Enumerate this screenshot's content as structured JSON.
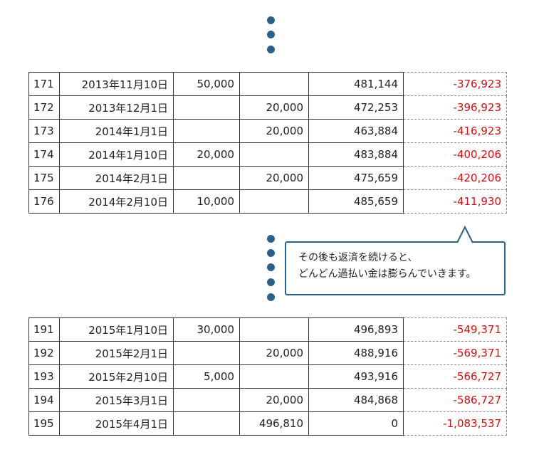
{
  "top_rows": [
    {
      "no": "171",
      "date": "2013年11月10日",
      "deposit": "50,000",
      "payment": "",
      "balance": "481,144",
      "diff": "-376,923"
    },
    {
      "no": "172",
      "date": "2013年12月1日",
      "deposit": "",
      "payment": "20,000",
      "balance": "472,253",
      "diff": "-396,923"
    },
    {
      "no": "173",
      "date": "2014年1月1日",
      "deposit": "",
      "payment": "20,000",
      "balance": "463,884",
      "diff": "-416,923"
    },
    {
      "no": "174",
      "date": "2014年1月10日",
      "deposit": "20,000",
      "payment": "",
      "balance": "483,884",
      "diff": "-400,206"
    },
    {
      "no": "175",
      "date": "2014年2月1日",
      "deposit": "",
      "payment": "20,000",
      "balance": "475,659",
      "diff": "-420,206"
    },
    {
      "no": "176",
      "date": "2014年2月10日",
      "deposit": "10,000",
      "payment": "",
      "balance": "485,659",
      "diff": "-411,930"
    }
  ],
  "bottom_rows": [
    {
      "no": "191",
      "date": "2015年1月10日",
      "deposit": "30,000",
      "payment": "",
      "balance": "496,893",
      "diff": "-549,371"
    },
    {
      "no": "192",
      "date": "2015年2月1日",
      "deposit": "",
      "payment": "20,000",
      "balance": "488,916",
      "diff": "-569,371"
    },
    {
      "no": "193",
      "date": "2015年2月10日",
      "deposit": "5,000",
      "payment": "",
      "balance": "493,916",
      "diff": "-566,727"
    },
    {
      "no": "194",
      "date": "2015年3月1日",
      "deposit": "",
      "payment": "20,000",
      "balance": "484,868",
      "diff": "-586,727"
    },
    {
      "no": "195",
      "date": "2015年4月1日",
      "deposit": "",
      "payment": "496,810",
      "balance": "0",
      "diff": "-1,083,537"
    }
  ],
  "callout": {
    "line1": "その後も返済を続けると、",
    "line2": "どんどん過払い金は膨らんでいきます。"
  },
  "colors": {
    "accent": "#2d6189",
    "negative": "#cc1111"
  },
  "icons": {
    "top_dots": "vertical-ellipsis",
    "middle_dots": "vertical-ellipsis"
  }
}
